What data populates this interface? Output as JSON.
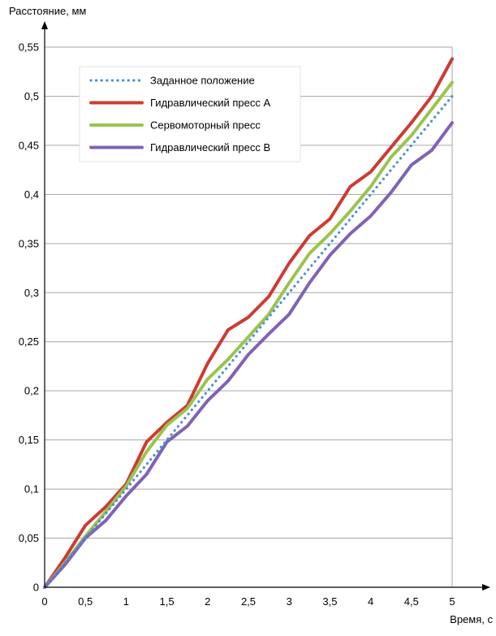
{
  "chart_data": {
    "type": "line",
    "title": "",
    "xlabel": "Время, с",
    "ylabel": "Расстояние, мм",
    "xlim": [
      0,
      5
    ],
    "ylim": [
      0,
      0.55
    ],
    "grid": true,
    "legend_position": "top-left",
    "x_ticks": [
      "0",
      "0,5",
      "1",
      "1,5",
      "2",
      "2,5",
      "3",
      "3,5",
      "4",
      "4,5",
      "5"
    ],
    "y_ticks": [
      "0",
      "0,05",
      "0,1",
      "0,15",
      "0,2",
      "0,25",
      "0,3",
      "0,35",
      "0,4",
      "0,45",
      "0,5",
      "0,55"
    ],
    "x": [
      0,
      0.25,
      0.5,
      0.75,
      1,
      1.25,
      1.5,
      1.75,
      2,
      2.25,
      2.5,
      2.75,
      3,
      3.25,
      3.5,
      3.75,
      4,
      4.25,
      4.5,
      4.75,
      5
    ],
    "series": [
      {
        "name": "Заданное положение",
        "color": "#4a8fd6",
        "style": "dotted",
        "values": [
          0,
          0.025,
          0.05,
          0.075,
          0.1,
          0.125,
          0.15,
          0.175,
          0.2,
          0.225,
          0.25,
          0.275,
          0.3,
          0.325,
          0.35,
          0.375,
          0.4,
          0.425,
          0.45,
          0.475,
          0.5
        ]
      },
      {
        "name": "Гидравлический пресс А",
        "color": "#cc3b33",
        "style": "solid",
        "values": [
          0,
          0.03,
          0.063,
          0.082,
          0.105,
          0.148,
          0.168,
          0.185,
          0.228,
          0.262,
          0.275,
          0.296,
          0.33,
          0.358,
          0.375,
          0.408,
          0.423,
          0.448,
          0.473,
          0.5,
          0.538
        ]
      },
      {
        "name": "Сервомоторный пресс",
        "color": "#9ac44e",
        "style": "solid",
        "values": [
          0,
          0.025,
          0.052,
          0.077,
          0.103,
          0.138,
          0.165,
          0.182,
          0.212,
          0.232,
          0.255,
          0.278,
          0.31,
          0.34,
          0.36,
          0.383,
          0.408,
          0.438,
          0.46,
          0.487,
          0.514
        ]
      },
      {
        "name": "Гидравлический пресс В",
        "color": "#7f63b4",
        "style": "solid",
        "values": [
          0,
          0.023,
          0.05,
          0.068,
          0.093,
          0.115,
          0.148,
          0.164,
          0.19,
          0.21,
          0.237,
          0.258,
          0.278,
          0.31,
          0.338,
          0.36,
          0.378,
          0.402,
          0.43,
          0.445,
          0.473
        ]
      }
    ]
  }
}
